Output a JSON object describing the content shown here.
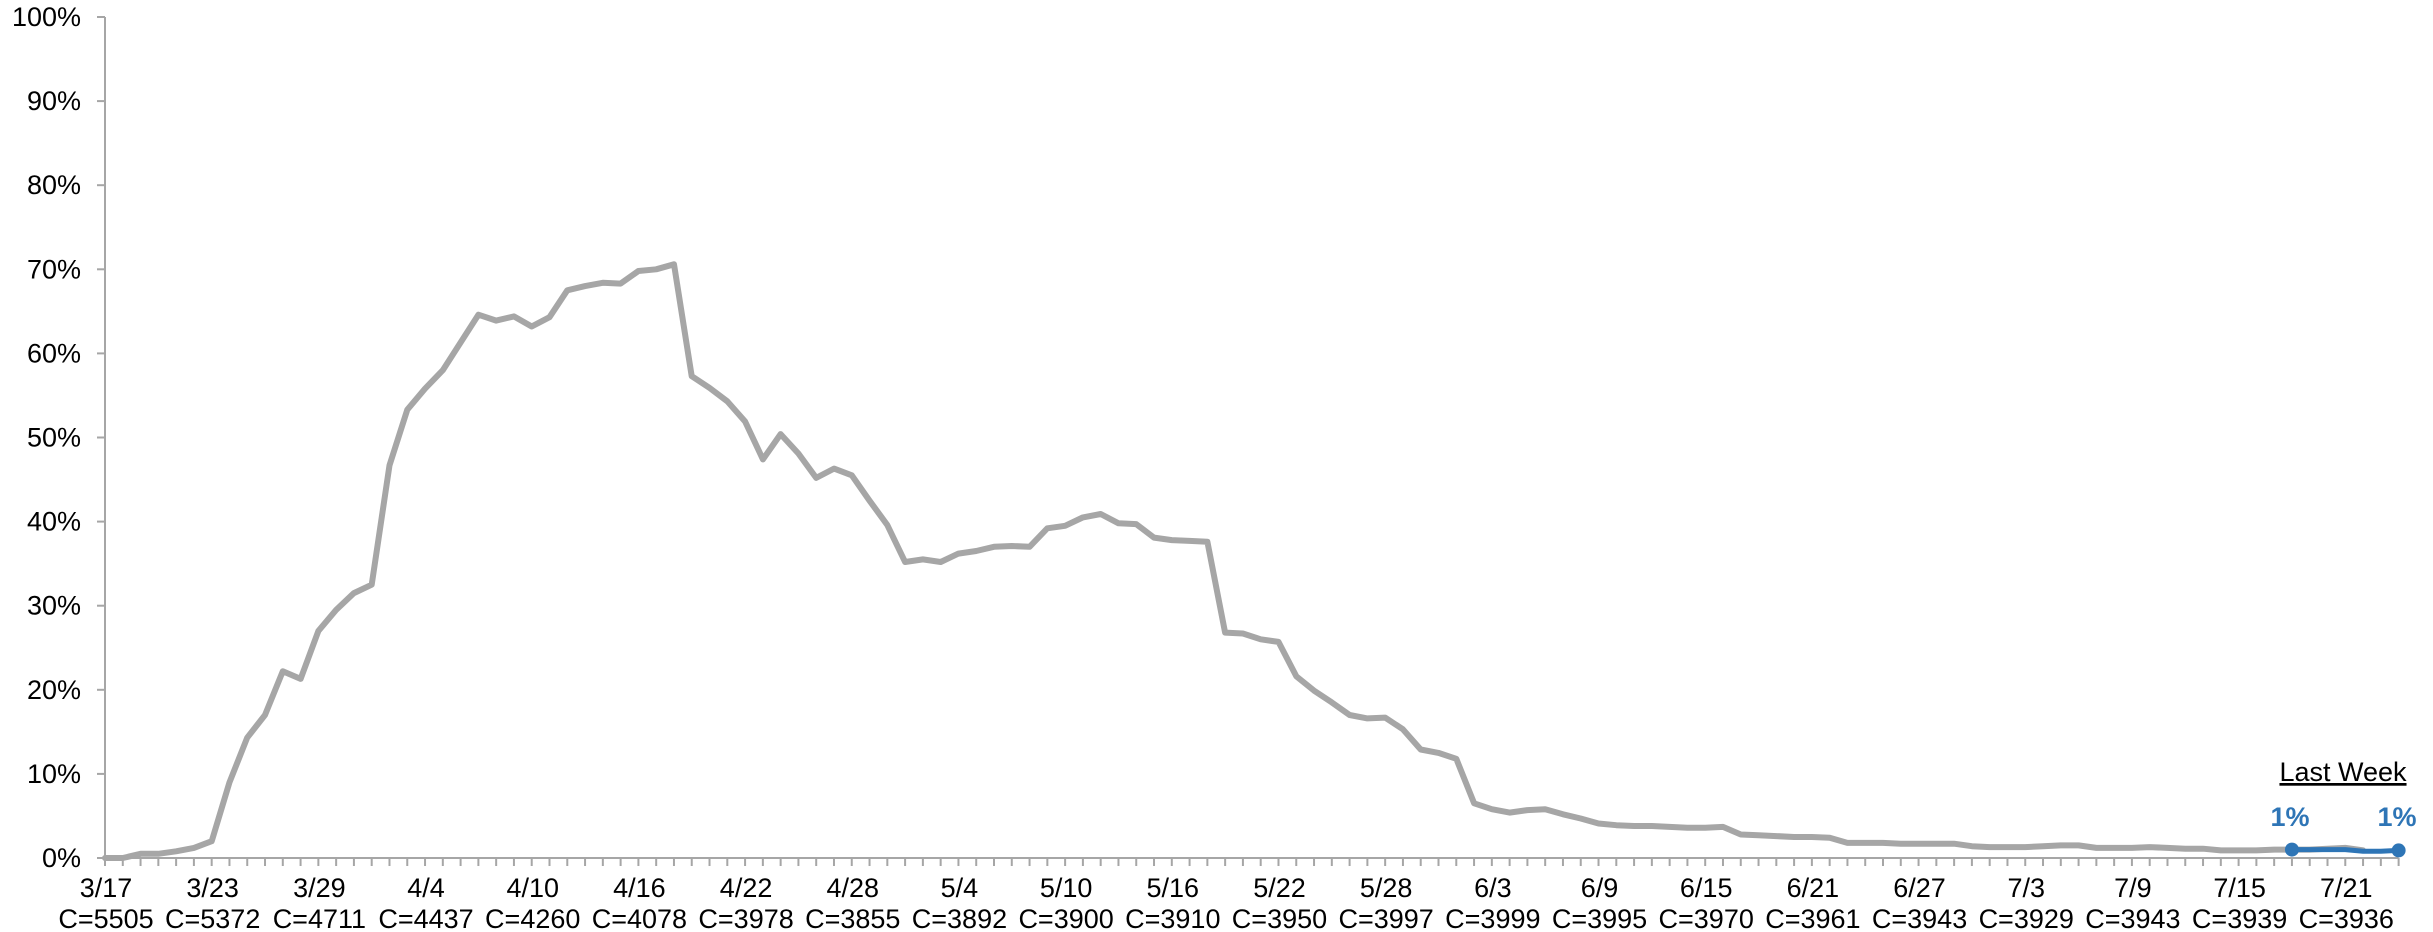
{
  "chart_data": {
    "type": "line",
    "ylim": [
      0,
      100
    ],
    "yticks": [
      "0%",
      "10%",
      "20%",
      "30%",
      "40%",
      "50%",
      "60%",
      "70%",
      "80%",
      "90%",
      "100%"
    ],
    "x_start": "3/17",
    "x_end": "7/24",
    "x_labels": [
      {
        "date": "3/17",
        "count": "C=5505"
      },
      {
        "date": "3/23",
        "count": "C=5372"
      },
      {
        "date": "3/29",
        "count": "C=4711"
      },
      {
        "date": "4/4",
        "count": "C=4437"
      },
      {
        "date": "4/10",
        "count": "C=4260"
      },
      {
        "date": "4/16",
        "count": "C=4078"
      },
      {
        "date": "4/22",
        "count": "C=3978"
      },
      {
        "date": "4/28",
        "count": "C=3855"
      },
      {
        "date": "5/4",
        "count": "C=3892"
      },
      {
        "date": "5/10",
        "count": "C=3900"
      },
      {
        "date": "5/16",
        "count": "C=3910"
      },
      {
        "date": "5/22",
        "count": "C=3950"
      },
      {
        "date": "5/28",
        "count": "C=3997"
      },
      {
        "date": "6/3",
        "count": "C=3999"
      },
      {
        "date": "6/9",
        "count": "C=3995"
      },
      {
        "date": "6/15",
        "count": "C=3970"
      },
      {
        "date": "6/21",
        "count": "C=3961"
      },
      {
        "date": "6/27",
        "count": "C=3943"
      },
      {
        "date": "7/3",
        "count": "C=3929"
      },
      {
        "date": "7/9",
        "count": "C=3943"
      },
      {
        "date": "7/15",
        "count": "C=3939"
      },
      {
        "date": "7/21",
        "count": "C=3936"
      }
    ],
    "series": [
      {
        "color": "#a6a6a6",
        "start_date": "3/17",
        "values": [
          0,
          0,
          0.5,
          0.5,
          0.8,
          1.2,
          2,
          9,
          14.3,
          17,
          22.2,
          21.3,
          27,
          29.5,
          31.5,
          32.5,
          46.7,
          53.3,
          55.8,
          58,
          61.3,
          64.6,
          63.9,
          64.4,
          63.2,
          64.3,
          67.5,
          68,
          68.4,
          68.3,
          69.8,
          70,
          70.6,
          57.3,
          55.9,
          54.3,
          51.9,
          47.4,
          50.4,
          48.1,
          45.2,
          46.3,
          45.5,
          42.5,
          39.6,
          35.2,
          35.5,
          35.2,
          36.2,
          36.5,
          37,
          37.1,
          37,
          39.2,
          39.5,
          40.5,
          40.9,
          39.8,
          39.7,
          38.1,
          37.8,
          37.7,
          37.6,
          26.8,
          26.7,
          26,
          25.7,
          21.6,
          19.9,
          18.5,
          17,
          16.6,
          16.7,
          15.3,
          12.9,
          12.5,
          11.8,
          6.5,
          5.8,
          5.4,
          5.7,
          5.8,
          5.2,
          4.7,
          4.1,
          3.9,
          3.8,
          3.8,
          3.7,
          3.6,
          3.6,
          3.7,
          2.8,
          2.7,
          2.6,
          2.5,
          2.5,
          2.4,
          1.8,
          1.8,
          1.8,
          1.7,
          1.7,
          1.7,
          1.7,
          1.4,
          1.3,
          1.3,
          1.3,
          1.4,
          1.5,
          1.5,
          1.2,
          1.2,
          1.2,
          1.3,
          1.2,
          1.1,
          1.1,
          0.9,
          0.9,
          0.9,
          1,
          1,
          1,
          1.1,
          1.2,
          0.9
        ]
      },
      {
        "name": "Last Week",
        "color": "#2e75b6",
        "start_date": "7/18",
        "values": [
          1,
          1,
          1,
          1,
          0.8,
          0.8,
          0.9
        ]
      }
    ],
    "annotations": {
      "legend_label": "Last Week",
      "first_label": "1%",
      "last_label": "1%"
    },
    "grid": false
  }
}
